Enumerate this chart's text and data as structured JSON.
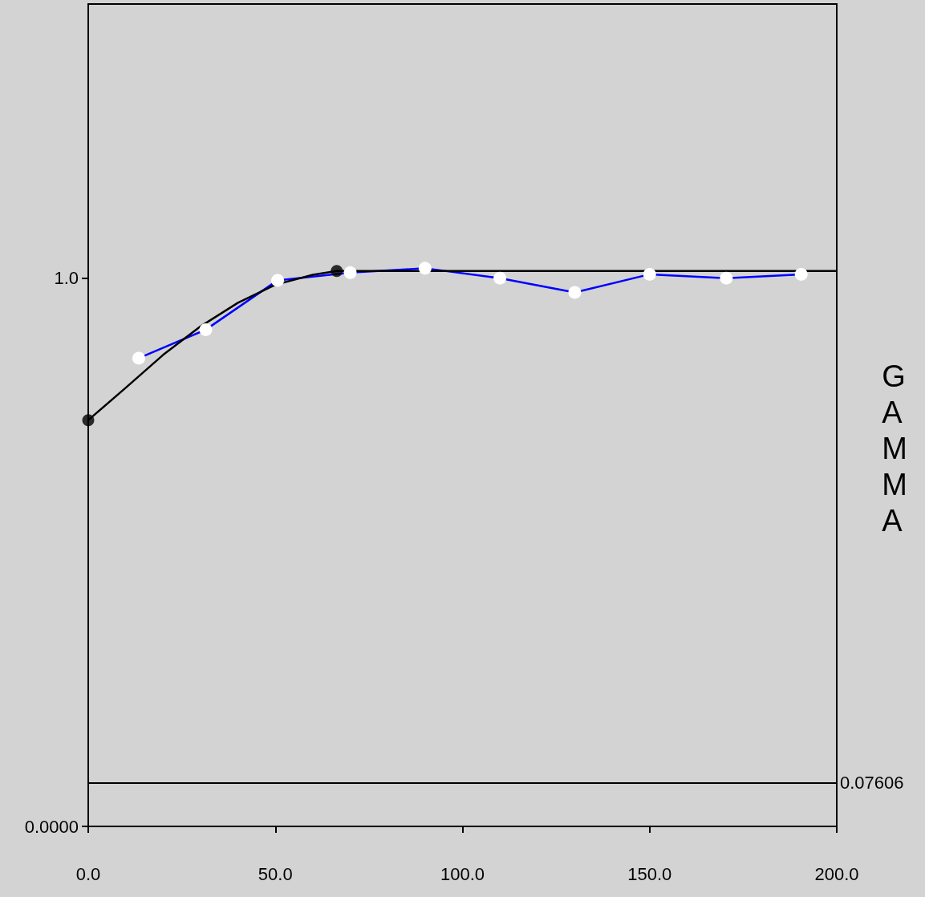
{
  "chart_data": {
    "type": "line",
    "ylabel": "GAMMA",
    "xlim": [
      0,
      200
    ],
    "ylim": [
      0,
      1.5
    ],
    "xticks": [
      {
        "value": 0,
        "label": "0.0"
      },
      {
        "value": 50,
        "label": "50.0"
      },
      {
        "value": 100,
        "label": "100.0"
      },
      {
        "value": 150,
        "label": "150.0"
      },
      {
        "value": 200,
        "label": "200.0"
      }
    ],
    "yticks": [
      {
        "value": 0,
        "label": "0.0000"
      },
      {
        "value": 1,
        "label": "1.0"
      }
    ],
    "grid": false,
    "series": [
      {
        "color": "#0000ff",
        "marker": "circle",
        "x": [
          13.5,
          31.4,
          50.6,
          70,
          90,
          110,
          130,
          150,
          170.5,
          190.5
        ],
        "values": [
          0.854,
          0.906,
          0.996,
          1.01,
          1.018,
          1.0,
          0.974,
          1.007,
          1.0,
          1.007
        ]
      },
      {
        "color": "#000000",
        "marker": "none",
        "x": [
          0,
          10,
          20,
          30,
          40,
          50,
          60,
          66.4,
          200
        ],
        "values": [
          0.741,
          0.8,
          0.86,
          0.912,
          0.955,
          0.988,
          1.006,
          1.013,
          1.013
        ]
      },
      {
        "type": "scatter",
        "color": "#000000",
        "marker": "circle",
        "x": [
          0,
          66.4
        ],
        "values": [
          0.741,
          1.013
        ]
      }
    ],
    "ref_lines": [
      {
        "axis": "y",
        "value": 0.07606,
        "label": "0.07606",
        "color": "#000000"
      }
    ]
  }
}
